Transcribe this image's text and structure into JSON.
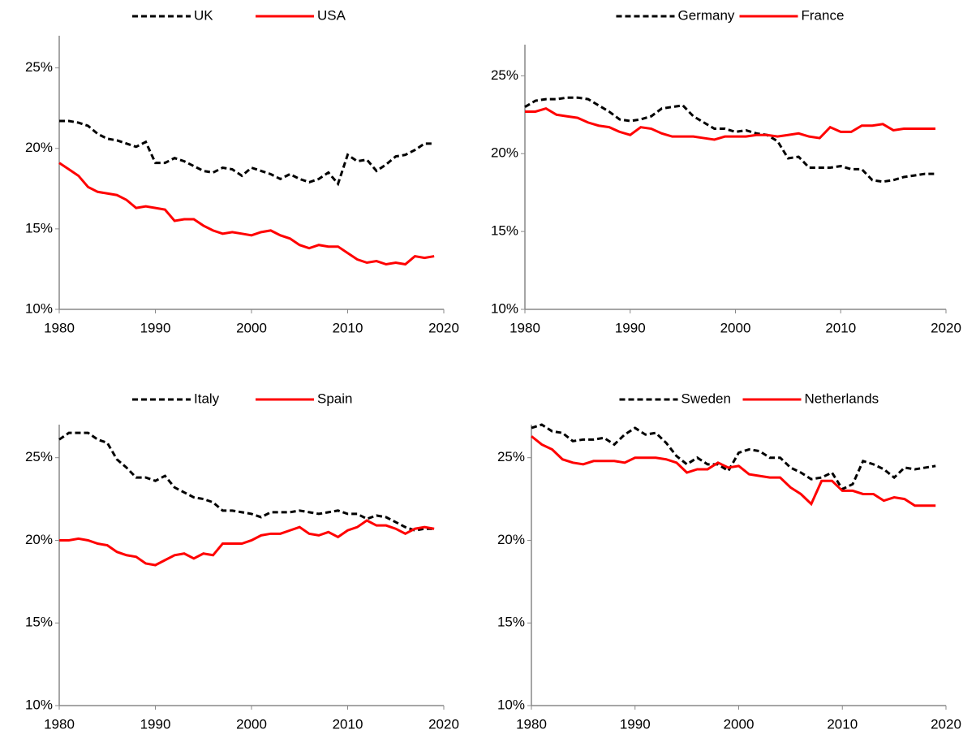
{
  "chart_data": [
    {
      "type": "line",
      "x": [
        1980,
        1981,
        1982,
        1983,
        1984,
        1985,
        1986,
        1987,
        1988,
        1989,
        1990,
        1991,
        1992,
        1993,
        1994,
        1995,
        1996,
        1997,
        1998,
        1999,
        2000,
        2001,
        2002,
        2003,
        2004,
        2005,
        2006,
        2007,
        2008,
        2009,
        2010,
        2011,
        2012,
        2013,
        2014,
        2015,
        2016,
        2017,
        2018,
        2019
      ],
      "series": [
        {
          "name": "UK",
          "color": "#000000",
          "line_style": "dashed",
          "values": [
            21.7,
            21.7,
            21.6,
            21.4,
            20.9,
            20.6,
            20.5,
            20.3,
            20.1,
            20.4,
            19.1,
            19.1,
            19.4,
            19.2,
            18.9,
            18.6,
            18.5,
            18.8,
            18.7,
            18.3,
            18.8,
            18.6,
            18.4,
            18.1,
            18.4,
            18.1,
            17.9,
            18.1,
            18.5,
            17.8,
            19.6,
            19.2,
            19.3,
            18.6,
            19.0,
            19.5,
            19.6,
            19.9,
            20.3,
            20.3
          ]
        },
        {
          "name": "USA",
          "color": "#ff0000",
          "line_style": "solid",
          "values": [
            19.1,
            18.7,
            18.3,
            17.6,
            17.3,
            17.2,
            17.1,
            16.8,
            16.3,
            16.4,
            16.3,
            16.2,
            15.5,
            15.6,
            15.6,
            15.2,
            14.9,
            14.7,
            14.8,
            14.7,
            14.6,
            14.8,
            14.9,
            14.6,
            14.4,
            14.0,
            13.8,
            14.0,
            13.9,
            13.9,
            13.5,
            13.1,
            12.9,
            13.0,
            12.8,
            12.9,
            12.8,
            13.3,
            13.2,
            13.3
          ]
        }
      ],
      "xlim": [
        1980,
        2020
      ],
      "xticks": [
        1980,
        1990,
        2000,
        2010,
        2020
      ],
      "ylim": [
        10,
        27
      ],
      "yticks": [
        {
          "value": 10,
          "label": "10%"
        },
        {
          "value": 15,
          "label": "15%"
        },
        {
          "value": 20,
          "label": "20%"
        },
        {
          "value": 25,
          "label": "25%"
        }
      ],
      "legend": "top"
    },
    {
      "type": "line",
      "x": [
        1980,
        1981,
        1982,
        1983,
        1984,
        1985,
        1986,
        1987,
        1988,
        1989,
        1990,
        1991,
        1992,
        1993,
        1994,
        1995,
        1996,
        1997,
        1998,
        1999,
        2000,
        2001,
        2002,
        2003,
        2004,
        2005,
        2006,
        2007,
        2008,
        2009,
        2010,
        2011,
        2012,
        2013,
        2014,
        2015,
        2016,
        2017,
        2018,
        2019
      ],
      "series": [
        {
          "name": "Germany",
          "color": "#000000",
          "line_style": "dashed",
          "values": [
            23.0,
            23.4,
            23.5,
            23.5,
            23.6,
            23.6,
            23.5,
            23.1,
            22.7,
            22.2,
            22.1,
            22.2,
            22.4,
            22.9,
            23.0,
            23.1,
            22.4,
            22.0,
            21.6,
            21.6,
            21.4,
            21.5,
            21.3,
            21.2,
            20.8,
            19.7,
            19.8,
            19.1,
            19.1,
            19.1,
            19.2,
            19.0,
            19.0,
            18.3,
            18.2,
            18.3,
            18.5,
            18.6,
            18.7,
            18.7
          ]
        },
        {
          "name": "France",
          "color": "#ff0000",
          "line_style": "solid",
          "values": [
            22.7,
            22.7,
            22.9,
            22.5,
            22.4,
            22.3,
            22.0,
            21.8,
            21.7,
            21.4,
            21.2,
            21.7,
            21.6,
            21.3,
            21.1,
            21.1,
            21.1,
            21.0,
            20.9,
            21.1,
            21.1,
            21.1,
            21.2,
            21.2,
            21.1,
            21.2,
            21.3,
            21.1,
            21.0,
            21.7,
            21.4,
            21.4,
            21.8,
            21.8,
            21.9,
            21.5,
            21.6,
            21.6,
            21.6,
            21.6
          ]
        }
      ],
      "xlim": [
        1980,
        2020
      ],
      "xticks": [
        1980,
        1990,
        2000,
        2010,
        2020
      ],
      "ylim": [
        10,
        27
      ],
      "yticks": [
        {
          "value": 10,
          "label": "10%"
        },
        {
          "value": 15,
          "label": "15%"
        },
        {
          "value": 20,
          "label": "20%"
        },
        {
          "value": 25,
          "label": "25%"
        }
      ],
      "legend": "top"
    },
    {
      "type": "line",
      "x": [
        1980,
        1981,
        1982,
        1983,
        1984,
        1985,
        1986,
        1987,
        1988,
        1989,
        1990,
        1991,
        1992,
        1993,
        1994,
        1995,
        1996,
        1997,
        1998,
        1999,
        2000,
        2001,
        2002,
        2003,
        2004,
        2005,
        2006,
        2007,
        2008,
        2009,
        2010,
        2011,
        2012,
        2013,
        2014,
        2015,
        2016,
        2017,
        2018,
        2019
      ],
      "series": [
        {
          "name": "Italy",
          "color": "#000000",
          "line_style": "dashed",
          "values": [
            26.1,
            26.5,
            26.5,
            26.5,
            26.1,
            25.9,
            24.9,
            24.4,
            23.8,
            23.8,
            23.6,
            23.9,
            23.2,
            22.9,
            22.6,
            22.5,
            22.3,
            21.8,
            21.8,
            21.7,
            21.6,
            21.4,
            21.7,
            21.7,
            21.7,
            21.8,
            21.7,
            21.6,
            21.7,
            21.8,
            21.6,
            21.6,
            21.3,
            21.5,
            21.4,
            21.1,
            20.8,
            20.6,
            20.7,
            20.7
          ]
        },
        {
          "name": "Spain",
          "color": "#ff0000",
          "line_style": "solid",
          "values": [
            20.0,
            20.0,
            20.1,
            20.0,
            19.8,
            19.7,
            19.3,
            19.1,
            19.0,
            18.6,
            18.5,
            18.8,
            19.1,
            19.2,
            18.9,
            19.2,
            19.1,
            19.8,
            19.8,
            19.8,
            20.0,
            20.3,
            20.4,
            20.4,
            20.6,
            20.8,
            20.4,
            20.3,
            20.5,
            20.2,
            20.6,
            20.8,
            21.2,
            20.9,
            20.9,
            20.7,
            20.4,
            20.7,
            20.8,
            20.7
          ]
        }
      ],
      "xlim": [
        1980,
        2020
      ],
      "xticks": [
        1980,
        1990,
        2000,
        2010,
        2020
      ],
      "ylim": [
        10,
        27
      ],
      "yticks": [
        {
          "value": 10,
          "label": "10%"
        },
        {
          "value": 15,
          "label": "15%"
        },
        {
          "value": 20,
          "label": "20%"
        },
        {
          "value": 25,
          "label": "25%"
        }
      ],
      "legend": "top"
    },
    {
      "type": "line",
      "x": [
        1980,
        1981,
        1982,
        1983,
        1984,
        1985,
        1986,
        1987,
        1988,
        1989,
        1990,
        1991,
        1992,
        1993,
        1994,
        1995,
        1996,
        1997,
        1998,
        1999,
        2000,
        2001,
        2002,
        2003,
        2004,
        2005,
        2006,
        2007,
        2008,
        2009,
        2010,
        2011,
        2012,
        2013,
        2014,
        2015,
        2016,
        2017,
        2018,
        2019
      ],
      "series": [
        {
          "name": "Sweden",
          "color": "#000000",
          "line_style": "dashed",
          "values": [
            26.8,
            27.0,
            26.6,
            26.5,
            26.0,
            26.1,
            26.1,
            26.2,
            25.8,
            26.4,
            26.8,
            26.4,
            26.5,
            25.9,
            25.1,
            24.6,
            25.0,
            24.6,
            24.6,
            24.2,
            25.3,
            25.5,
            25.4,
            25.0,
            25.0,
            24.4,
            24.1,
            23.7,
            23.8,
            24.1,
            23.1,
            23.4,
            24.8,
            24.6,
            24.3,
            23.8,
            24.4,
            24.3,
            24.4,
            24.5
          ]
        },
        {
          "name": "Netherlands",
          "color": "#ff0000",
          "line_style": "solid",
          "values": [
            26.3,
            25.8,
            25.5,
            24.9,
            24.7,
            24.6,
            24.8,
            24.8,
            24.8,
            24.7,
            25.0,
            25.0,
            25.0,
            24.9,
            24.7,
            24.1,
            24.3,
            24.3,
            24.7,
            24.4,
            24.5,
            24.0,
            23.9,
            23.8,
            23.8,
            23.2,
            22.8,
            22.2,
            23.6,
            23.6,
            23.0,
            23.0,
            22.8,
            22.8,
            22.4,
            22.6,
            22.5,
            22.1,
            22.1,
            22.1
          ]
        }
      ],
      "xlim": [
        1980,
        2020
      ],
      "xticks": [
        1980,
        1990,
        2000,
        2010,
        2020
      ],
      "ylim": [
        10,
        27
      ],
      "yticks": [
        {
          "value": 10,
          "label": "10%"
        },
        {
          "value": 15,
          "label": "15%"
        },
        {
          "value": 20,
          "label": "20%"
        },
        {
          "value": 25,
          "label": "25%"
        }
      ],
      "legend": "top"
    }
  ]
}
